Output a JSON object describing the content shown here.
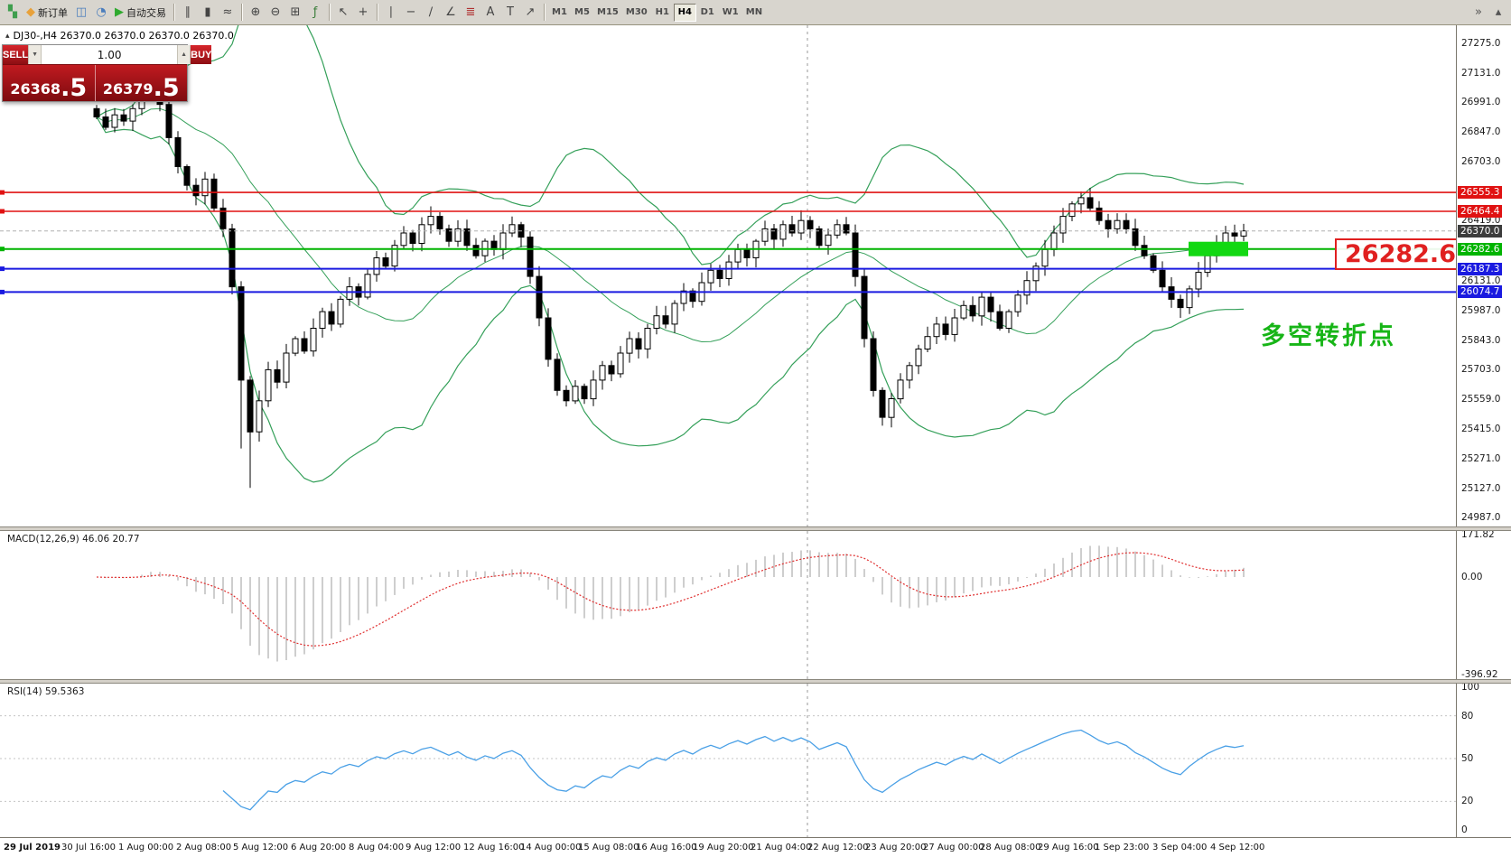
{
  "window": {
    "title_icon": "▴",
    "chart_title": "DJ30-,H4  26370.0 26370.0 26370.0 26370.0"
  },
  "toolbar": {
    "groups": [
      {
        "items": [
          {
            "name": "new-chart",
            "glyph": "▚",
            "color": "#3f9e4e"
          },
          {
            "name": "new-order",
            "glyph": "◆",
            "color": "#e8a13a",
            "label": "新订单"
          },
          {
            "name": "profiles",
            "glyph": "◫",
            "color": "#4a7dbd"
          },
          {
            "name": "data-window",
            "glyph": "◔",
            "color": "#4a7dbd"
          },
          {
            "name": "auto-trading",
            "glyph": "▶",
            "color": "#2faa2f",
            "label": "自动交易"
          }
        ]
      },
      {
        "items": [
          {
            "name": "bar-chart",
            "glyph": "∥",
            "color": "#444444"
          },
          {
            "name": "candlestick-chart",
            "glyph": "▮",
            "color": "#444444"
          },
          {
            "name": "line-chart",
            "glyph": "≈",
            "color": "#444444"
          }
        ]
      },
      {
        "items": [
          {
            "name": "zoom-in",
            "glyph": "⊕",
            "color": "#444444"
          },
          {
            "name": "zoom-out",
            "glyph": "⊖",
            "color": "#444444"
          },
          {
            "name": "tile-windows",
            "glyph": "⊞",
            "color": "#444444"
          },
          {
            "name": "indicators",
            "glyph": "ƒ",
            "color": "#3a7d3a"
          }
        ]
      },
      {
        "items": [
          {
            "name": "cursor",
            "glyph": "↖",
            "color": "#444444"
          },
          {
            "name": "crosshair",
            "glyph": "+",
            "color": "#444444"
          }
        ]
      },
      {
        "items": [
          {
            "name": "vertical-line",
            "glyph": "∣",
            "color": "#444444"
          },
          {
            "name": "horizontal-line",
            "glyph": "−",
            "color": "#444444"
          },
          {
            "name": "trendline",
            "glyph": "∕",
            "color": "#444444"
          },
          {
            "name": "equidistant-channel",
            "glyph": "∠",
            "color": "#444444"
          },
          {
            "name": "fibonacci",
            "glyph": "≣",
            "color": "#b03030"
          },
          {
            "name": "text",
            "glyph": "A",
            "color": "#444444"
          },
          {
            "name": "text-label",
            "glyph": "T",
            "color": "#444444"
          },
          {
            "name": "arrows-tool",
            "glyph": "↗",
            "color": "#444444"
          }
        ]
      }
    ],
    "timeframes": [
      "M1",
      "M5",
      "M15",
      "M30",
      "H1",
      "H4",
      "D1",
      "W1",
      "MN"
    ],
    "active_timeframe": "H4",
    "right_icons": [
      {
        "name": "toolbar-overflow",
        "glyph": "»"
      },
      {
        "name": "collapse-toolbar",
        "glyph": "▴"
      }
    ]
  },
  "trade": {
    "sell_label": "SELL",
    "buy_label": "BUY",
    "lot": "1.00",
    "spin_down": "▼",
    "spin_up": "▲",
    "bid_main": "26368",
    "bid_frac": ".5",
    "ask_main": "26379",
    "ask_frac": ".5"
  },
  "chart": {
    "symbol": "DJ30-",
    "period": "H4",
    "big_price_label": "26282.6",
    "annotation": "多空转折点",
    "levels": {
      "resistance": [
        26555.3,
        26464.4
      ],
      "pivot_green": 26282.6,
      "support": [
        26187.3,
        26074.7
      ],
      "current": 26370.0
    },
    "axis_labels_plain": [
      "27275.0",
      "27131.0",
      "26991.0",
      "26847.0",
      "26703.0",
      "26419.0",
      "26131.0",
      "25987.0",
      "25843.0",
      "25703.0",
      "25559.0",
      "25415.0",
      "25271.0",
      "25127.0",
      "24987.0"
    ],
    "first_open": 26960,
    "candles_close": [
      26920,
      26870,
      26930,
      26900,
      26960,
      27030,
      27090,
      26980,
      26820,
      26680,
      26590,
      26540,
      26620,
      26480,
      26380,
      26100,
      25650,
      25400,
      25550,
      25700,
      25640,
      25780,
      25850,
      25790,
      25900,
      25980,
      25920,
      26040,
      26100,
      26050,
      26160,
      26240,
      26200,
      26300,
      26360,
      26310,
      26400,
      26440,
      26380,
      26320,
      26380,
      26300,
      26250,
      26320,
      26280,
      26360,
      26400,
      26340,
      26150,
      25950,
      25750,
      25600,
      25550,
      25620,
      25560,
      25650,
      25720,
      25680,
      25780,
      25850,
      25800,
      25900,
      25960,
      25920,
      26020,
      26080,
      26030,
      26120,
      26180,
      26140,
      26220,
      26280,
      26240,
      26320,
      26380,
      26330,
      26400,
      26360,
      26420,
      26380,
      26300,
      26350,
      26400,
      26360,
      26150,
      25850,
      25600,
      25470,
      25560,
      25650,
      25720,
      25800,
      25860,
      25920,
      25870,
      25950,
      26010,
      25960,
      26050,
      25980,
      25900,
      25980,
      26060,
      26130,
      26200,
      26280,
      26360,
      26440,
      26500,
      26530,
      26480,
      26420,
      26380,
      26420,
      26380,
      26300,
      26250,
      26180,
      26100,
      26040,
      26000,
      26090,
      26170,
      26250,
      26310,
      26360,
      26345,
      26370
    ],
    "high_overrides": {
      "6": 27160,
      "109": 26560
    },
    "low_overrides": {
      "16": 25320,
      "17": 25130,
      "87": 25430,
      "120": 25950
    }
  },
  "macd": {
    "label": "MACD(12,26,9) 46.06 20.77",
    "params": [
      12,
      26,
      9
    ],
    "value_main": "46.06",
    "value_signal": "20.77",
    "axis": [
      "171.82",
      "0.00",
      "-396.92"
    ]
  },
  "rsi": {
    "label": "RSI(14) 59.5363",
    "period": 14,
    "value": "59.5363",
    "axis": [
      "100",
      "80",
      "50",
      "20",
      "0"
    ]
  },
  "time_axis": [
    "29 Jul 2019",
    "30 Jul 16:00",
    "1 Aug 00:00",
    "2 Aug 08:00",
    "5 Aug 12:00",
    "6 Aug 20:00",
    "8 Aug 04:00",
    "9 Aug 12:00",
    "12 Aug 16:00",
    "14 Aug 00:00",
    "15 Aug 08:00",
    "16 Aug 16:00",
    "19 Aug 20:00",
    "21 Aug 04:00",
    "22 Aug 12:00",
    "23 Aug 20:00",
    "27 Aug 00:00",
    "28 Aug 08:00",
    "29 Aug 16:00",
    "1 Sep 23:00",
    "3 Sep 04:00",
    "4 Sep 12:00"
  ],
  "colors": {
    "red": "#e01212",
    "green": "#00b400",
    "blue": "#1a1ae0",
    "band_green": "#35a05a",
    "current_badge": "#3c3c3c",
    "highlight_green": "#12d812",
    "macd_hist": "#b8b8b8",
    "macd_signal": "#e03030",
    "rsi_line": "#4aa0e6"
  }
}
